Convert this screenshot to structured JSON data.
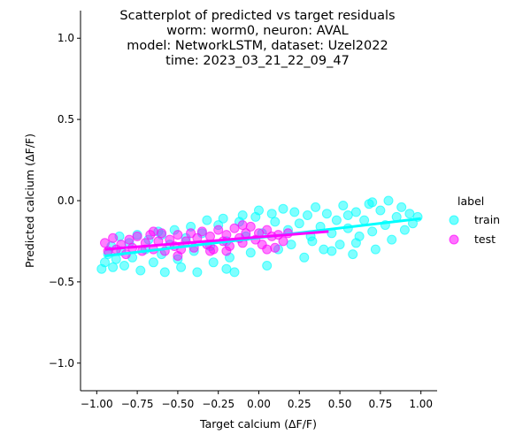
{
  "chart_data": {
    "type": "scatter",
    "title_lines": [
      "Scatterplot of predicted vs target residuals",
      "worm: worm0, neuron: AVAL",
      "model: NetworkLSTM, dataset: Uzel2022",
      "time: 2023_03_21_22_09_47"
    ],
    "xlabel": "Target calcium (ΔF/F)",
    "ylabel": "Predicted calcium (ΔF/F)",
    "xlim": [
      -1.1,
      1.1
    ],
    "ylim": [
      -1.17,
      1.17
    ],
    "xticks": [
      -1.0,
      -0.75,
      -0.5,
      -0.25,
      0.0,
      0.25,
      0.5,
      0.75,
      1.0
    ],
    "xtick_labels": [
      "−1.00",
      "−0.75",
      "−0.50",
      "−0.25",
      "0.00",
      "0.25",
      "0.50",
      "0.75",
      "1.00"
    ],
    "yticks": [
      -1.0,
      -0.5,
      0.0,
      0.5,
      1.0
    ],
    "ytick_labels": [
      "−1.0",
      "−0.5",
      "0.0",
      "0.5",
      "1.0"
    ],
    "legend": {
      "title": "label",
      "placement": "right",
      "entries": [
        {
          "name": "train",
          "color": "#00ffff"
        },
        {
          "name": "test",
          "color": "#ff00ff"
        }
      ]
    },
    "series": [
      {
        "name": "train",
        "color": "#00ffff",
        "points": [
          [
            -0.97,
            -0.42
          ],
          [
            -0.95,
            -0.38
          ],
          [
            -0.93,
            -0.33
          ],
          [
            -0.91,
            -0.28
          ],
          [
            -0.9,
            -0.41
          ],
          [
            -0.88,
            -0.36
          ],
          [
            -0.86,
            -0.22
          ],
          [
            -0.85,
            -0.31
          ],
          [
            -0.83,
            -0.4
          ],
          [
            -0.8,
            -0.26
          ],
          [
            -0.78,
            -0.35
          ],
          [
            -0.75,
            -0.21
          ],
          [
            -0.73,
            -0.43
          ],
          [
            -0.7,
            -0.3
          ],
          [
            -0.68,
            -0.24
          ],
          [
            -0.65,
            -0.38
          ],
          [
            -0.62,
            -0.19
          ],
          [
            -0.6,
            -0.33
          ],
          [
            -0.58,
            -0.44
          ],
          [
            -0.55,
            -0.27
          ],
          [
            -0.52,
            -0.18
          ],
          [
            -0.5,
            -0.36
          ],
          [
            -0.48,
            -0.41
          ],
          [
            -0.45,
            -0.23
          ],
          [
            -0.42,
            -0.16
          ],
          [
            -0.4,
            -0.31
          ],
          [
            -0.38,
            -0.44
          ],
          [
            -0.35,
            -0.2
          ],
          [
            -0.32,
            -0.12
          ],
          [
            -0.3,
            -0.28
          ],
          [
            -0.28,
            -0.38
          ],
          [
            -0.25,
            -0.15
          ],
          [
            -0.22,
            -0.11
          ],
          [
            -0.2,
            -0.25
          ],
          [
            -0.18,
            -0.35
          ],
          [
            -0.15,
            -0.44
          ],
          [
            -0.12,
            -0.13
          ],
          [
            -0.1,
            -0.09
          ],
          [
            -0.08,
            -0.22
          ],
          [
            -0.05,
            -0.32
          ],
          [
            -0.02,
            -0.1
          ],
          [
            0.0,
            -0.06
          ],
          [
            0.02,
            -0.2
          ],
          [
            0.05,
            -0.4
          ],
          [
            0.08,
            -0.08
          ],
          [
            0.1,
            -0.13
          ],
          [
            0.12,
            -0.3
          ],
          [
            0.15,
            -0.05
          ],
          [
            0.18,
            -0.18
          ],
          [
            0.2,
            -0.27
          ],
          [
            0.22,
            -0.07
          ],
          [
            0.25,
            -0.14
          ],
          [
            0.28,
            -0.35
          ],
          [
            0.3,
            -0.09
          ],
          [
            0.32,
            -0.22
          ],
          [
            0.35,
            -0.04
          ],
          [
            0.38,
            -0.16
          ],
          [
            0.4,
            -0.3
          ],
          [
            0.42,
            -0.08
          ],
          [
            0.45,
            -0.2
          ],
          [
            0.48,
            -0.12
          ],
          [
            0.5,
            -0.27
          ],
          [
            0.52,
            -0.03
          ],
          [
            0.55,
            -0.17
          ],
          [
            0.58,
            -0.33
          ],
          [
            0.6,
            -0.07
          ],
          [
            0.62,
            -0.22
          ],
          [
            0.65,
            -0.12
          ],
          [
            0.68,
            -0.02
          ],
          [
            0.7,
            -0.19
          ],
          [
            0.72,
            -0.3
          ],
          [
            0.75,
            -0.06
          ],
          [
            0.78,
            -0.15
          ],
          [
            0.8,
            0.0
          ],
          [
            0.82,
            -0.24
          ],
          [
            0.85,
            -0.1
          ],
          [
            0.88,
            -0.04
          ],
          [
            0.9,
            -0.18
          ],
          [
            0.93,
            -0.08
          ],
          [
            0.95,
            -0.14
          ],
          [
            0.98,
            -0.1
          ],
          [
            0.6,
            -0.26
          ],
          [
            0.45,
            -0.31
          ],
          [
            0.33,
            -0.25
          ],
          [
            0.7,
            -0.01
          ],
          [
            0.55,
            -0.09
          ],
          [
            -0.6,
            -0.21
          ],
          [
            -0.2,
            -0.42
          ]
        ]
      },
      {
        "name": "test",
        "color": "#ff00ff",
        "points": [
          [
            -0.95,
            -0.26
          ],
          [
            -0.93,
            -0.31
          ],
          [
            -0.9,
            -0.23
          ],
          [
            -0.88,
            -0.3
          ],
          [
            -0.85,
            -0.27
          ],
          [
            -0.82,
            -0.33
          ],
          [
            -0.8,
            -0.24
          ],
          [
            -0.78,
            -0.29
          ],
          [
            -0.75,
            -0.22
          ],
          [
            -0.72,
            -0.31
          ],
          [
            -0.7,
            -0.26
          ],
          [
            -0.67,
            -0.21
          ],
          [
            -0.65,
            -0.3
          ],
          [
            -0.62,
            -0.25
          ],
          [
            -0.6,
            -0.2
          ],
          [
            -0.58,
            -0.31
          ],
          [
            -0.55,
            -0.24
          ],
          [
            -0.52,
            -0.28
          ],
          [
            -0.5,
            -0.21
          ],
          [
            -0.48,
            -0.3
          ],
          [
            -0.45,
            -0.25
          ],
          [
            -0.42,
            -0.2
          ],
          [
            -0.4,
            -0.29
          ],
          [
            -0.38,
            -0.23
          ],
          [
            -0.35,
            -0.19
          ],
          [
            -0.32,
            -0.27
          ],
          [
            -0.3,
            -0.22
          ],
          [
            -0.28,
            -0.3
          ],
          [
            -0.25,
            -0.18
          ],
          [
            -0.22,
            -0.25
          ],
          [
            -0.2,
            -0.21
          ],
          [
            -0.18,
            -0.28
          ],
          [
            -0.15,
            -0.17
          ],
          [
            -0.12,
            -0.23
          ],
          [
            -0.1,
            -0.26
          ],
          [
            -0.08,
            -0.2
          ],
          [
            -0.05,
            -0.16
          ],
          [
            -0.02,
            -0.24
          ],
          [
            0.0,
            -0.2
          ],
          [
            0.02,
            -0.27
          ],
          [
            0.05,
            -0.18
          ],
          [
            0.08,
            -0.22
          ],
          [
            0.1,
            -0.29
          ],
          [
            0.12,
            -0.21
          ],
          [
            0.15,
            -0.25
          ],
          [
            0.18,
            -0.2
          ],
          [
            -0.5,
            -0.34
          ],
          [
            -0.2,
            -0.31
          ],
          [
            -0.65,
            -0.19
          ],
          [
            -0.1,
            -0.15
          ],
          [
            -0.3,
            -0.31
          ],
          [
            0.05,
            -0.3
          ]
        ]
      }
    ],
    "regression_lines": [
      {
        "name": "train",
        "color": "#00ffff",
        "x": [
          -0.95,
          1.0
        ],
        "y": [
          -0.34,
          -0.11
        ]
      },
      {
        "name": "test",
        "color": "#ff00ff",
        "x": [
          -0.95,
          0.43
        ],
        "y": [
          -0.3,
          -0.19
        ]
      }
    ]
  }
}
